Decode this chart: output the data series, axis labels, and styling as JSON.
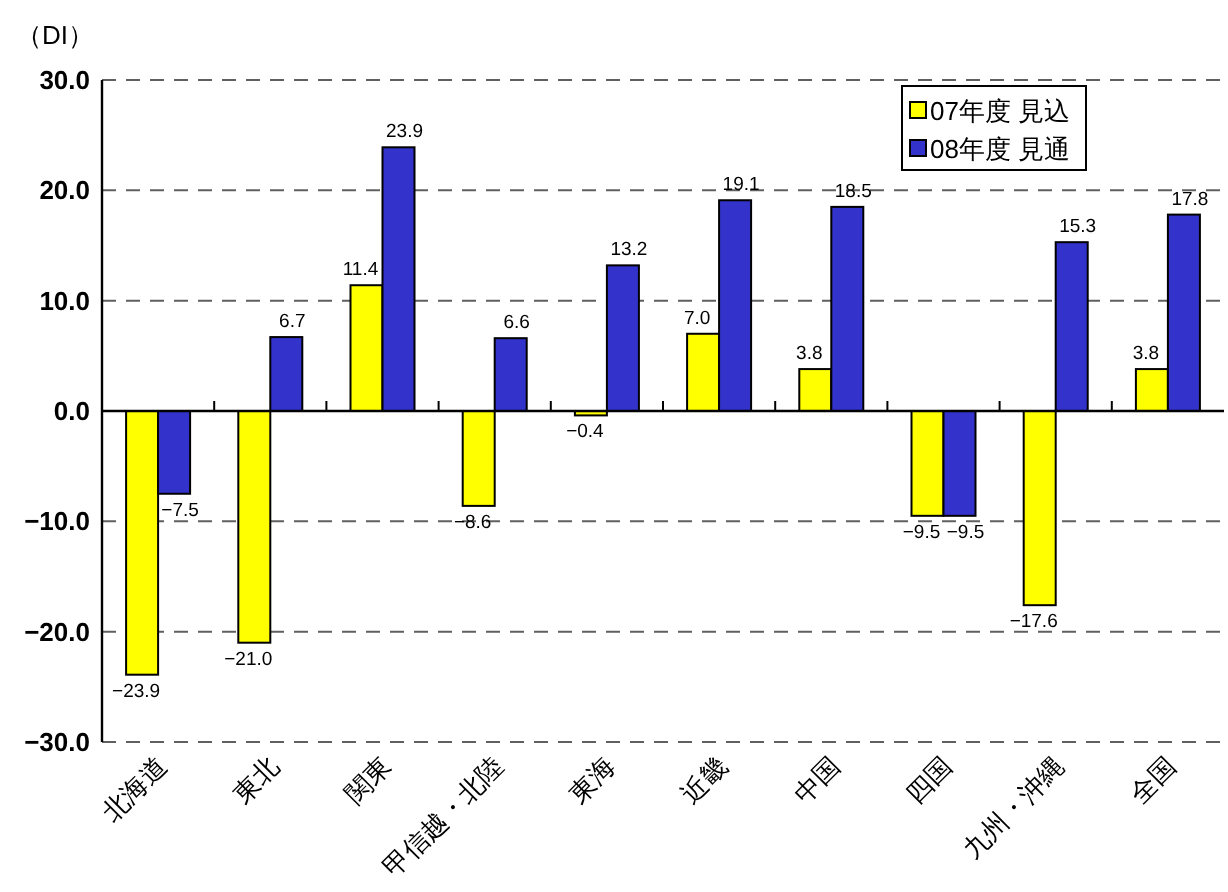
{
  "chart_data": {
    "type": "bar",
    "ylabel": "（DI）",
    "categories": [
      "北海道",
      "東北",
      "関東",
      "甲信越・北陸",
      "東海",
      "近畿",
      "中国",
      "四国",
      "九州・沖縄",
      "全国"
    ],
    "series": [
      {
        "name": "07年度 見込",
        "color": "#ffff00",
        "values": [
          -23.9,
          -21.0,
          11.4,
          -8.6,
          -0.4,
          7.0,
          3.8,
          -9.5,
          -17.6,
          3.8
        ],
        "value_labels": [
          "−23.9",
          "−21.0",
          "11.4",
          "−8.6",
          "−0.4",
          "7.0",
          "3.8",
          "−9.5",
          "−17.6",
          "3.8"
        ]
      },
      {
        "name": "08年度 見通",
        "color": "#3333cc",
        "values": [
          -7.5,
          6.7,
          23.9,
          6.6,
          13.2,
          19.1,
          18.5,
          -9.5,
          15.3,
          17.8
        ],
        "value_labels": [
          "−7.5",
          "6.7",
          "23.9",
          "6.6",
          "13.2",
          "19.1",
          "18.5",
          "−9.5",
          "15.3",
          "17.8"
        ]
      }
    ],
    "ylim": [
      -30,
      30
    ],
    "yticks": [
      {
        "value": -30,
        "label": "−30.0"
      },
      {
        "value": -20,
        "label": "−20.0"
      },
      {
        "value": -10,
        "label": "−10.0"
      },
      {
        "value": 0,
        "label": "0.0"
      },
      {
        "value": 10,
        "label": "10.0"
      },
      {
        "value": 20,
        "label": "20.0"
      },
      {
        "value": 30,
        "label": "30.0"
      }
    ],
    "grid": "y",
    "legend": "top right"
  }
}
